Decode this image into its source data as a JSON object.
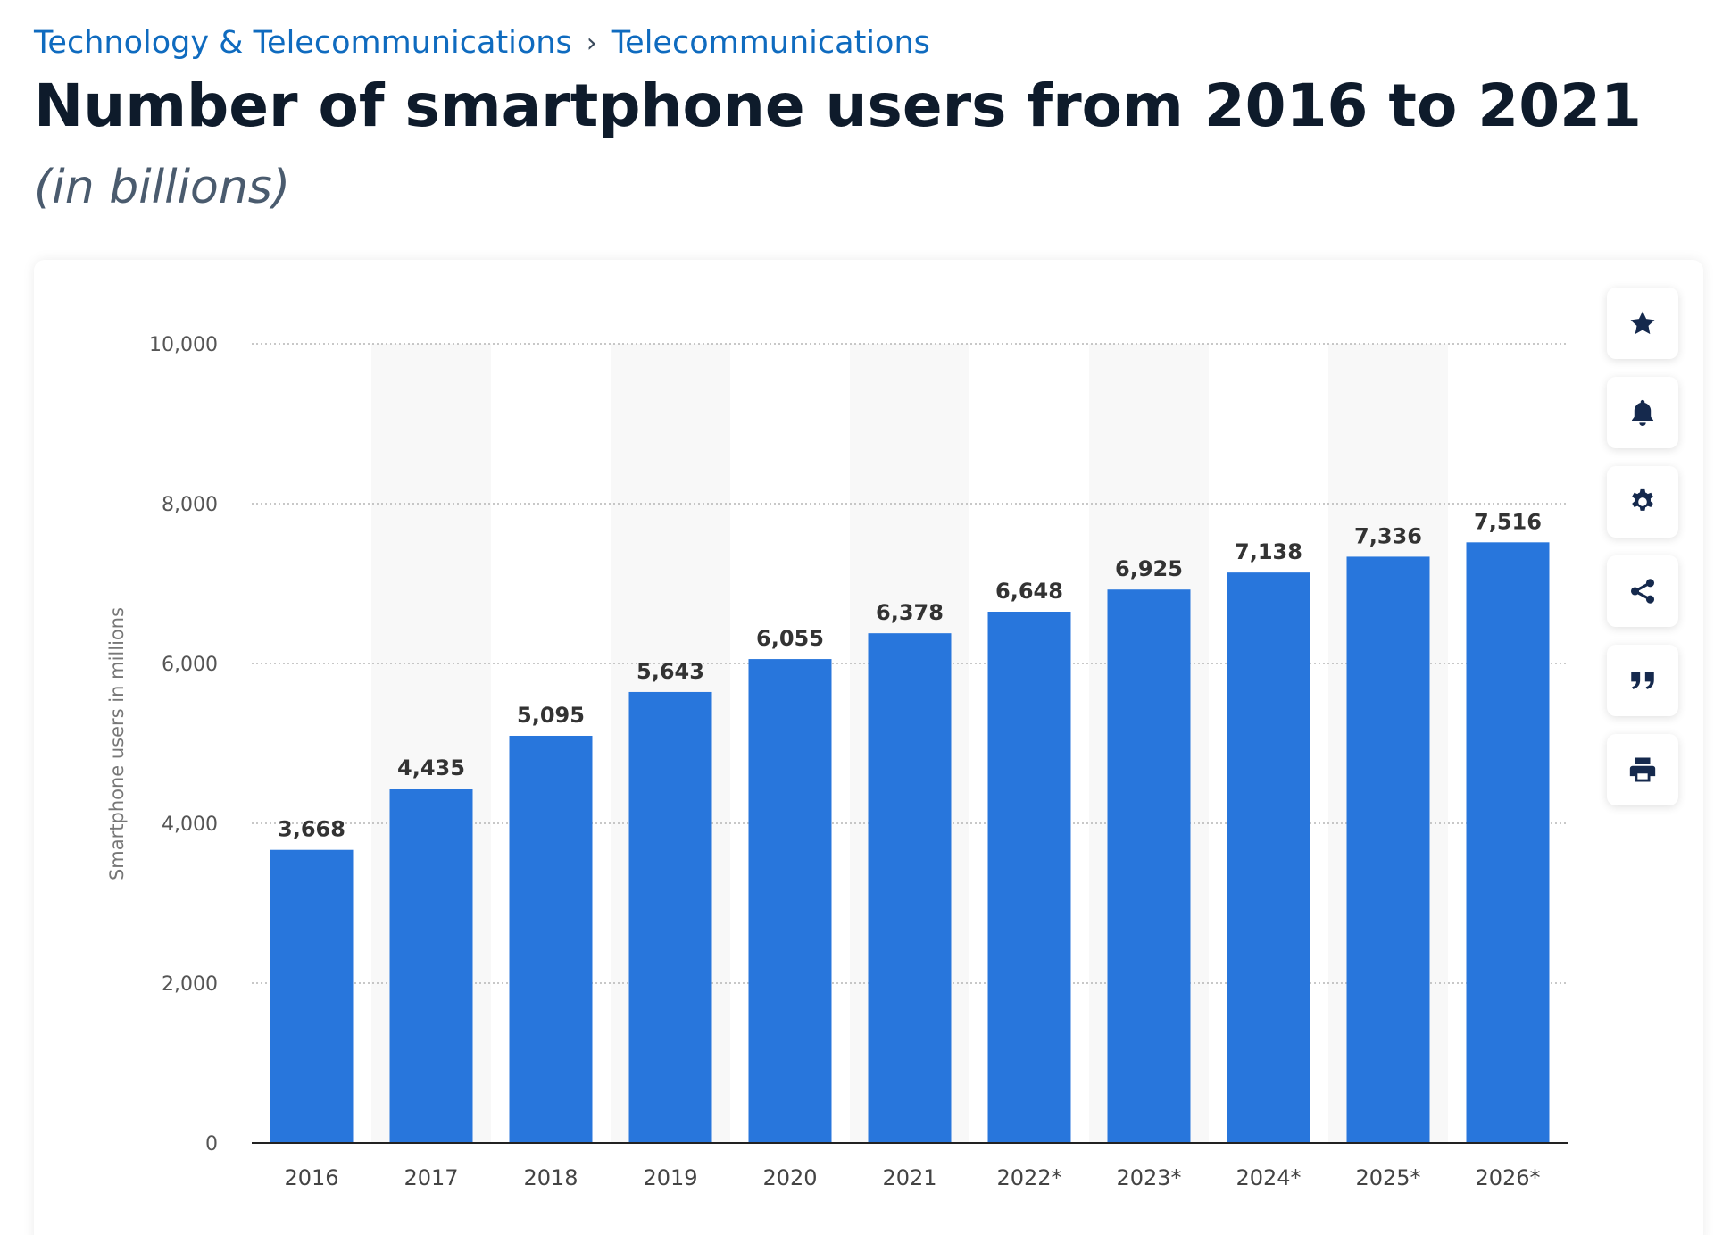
{
  "breadcrumb": {
    "items": [
      "Technology & Telecommunications",
      "Telecommunications"
    ],
    "separator": "›"
  },
  "page": {
    "title": "Number of smartphone users from 2016 to 2021",
    "subtitle": "(in billions)"
  },
  "toolbar": {
    "buttons": [
      {
        "name": "star-icon",
        "action": "favorite"
      },
      {
        "name": "bell-icon",
        "action": "notify"
      },
      {
        "name": "gear-icon",
        "action": "settings"
      },
      {
        "name": "share-icon",
        "action": "share"
      },
      {
        "name": "quote-icon",
        "action": "cite"
      },
      {
        "name": "print-icon",
        "action": "print"
      }
    ]
  },
  "colors": {
    "bar": "#2876dc",
    "band": "#f8f8f8",
    "grid": "#b5b5b5",
    "axis": "#222222",
    "link": "#0f6bbf",
    "title": "#0e1b2b",
    "icon": "#15294d"
  },
  "chart_data": {
    "type": "bar",
    "categories": [
      "2016",
      "2017",
      "2018",
      "2019",
      "2020",
      "2021",
      "2022*",
      "2023*",
      "2024*",
      "2025*",
      "2026*"
    ],
    "values": [
      3668,
      4435,
      5095,
      5643,
      6055,
      6378,
      6648,
      6925,
      7138,
      7336,
      7516
    ],
    "value_labels": [
      "3,668",
      "4,435",
      "5,095",
      "5,643",
      "6,055",
      "6,378",
      "6,648",
      "6,925",
      "7,138",
      "7,336",
      "7,516"
    ],
    "ylabel": "Smartphone users in millions",
    "ylim": [
      0,
      10000
    ],
    "yticks": [
      0,
      2000,
      4000,
      6000,
      8000,
      10000
    ],
    "ytick_labels": [
      "0",
      "2,000",
      "4,000",
      "6,000",
      "8,000",
      "10,000"
    ],
    "grid": true,
    "alternating_bands": true
  }
}
